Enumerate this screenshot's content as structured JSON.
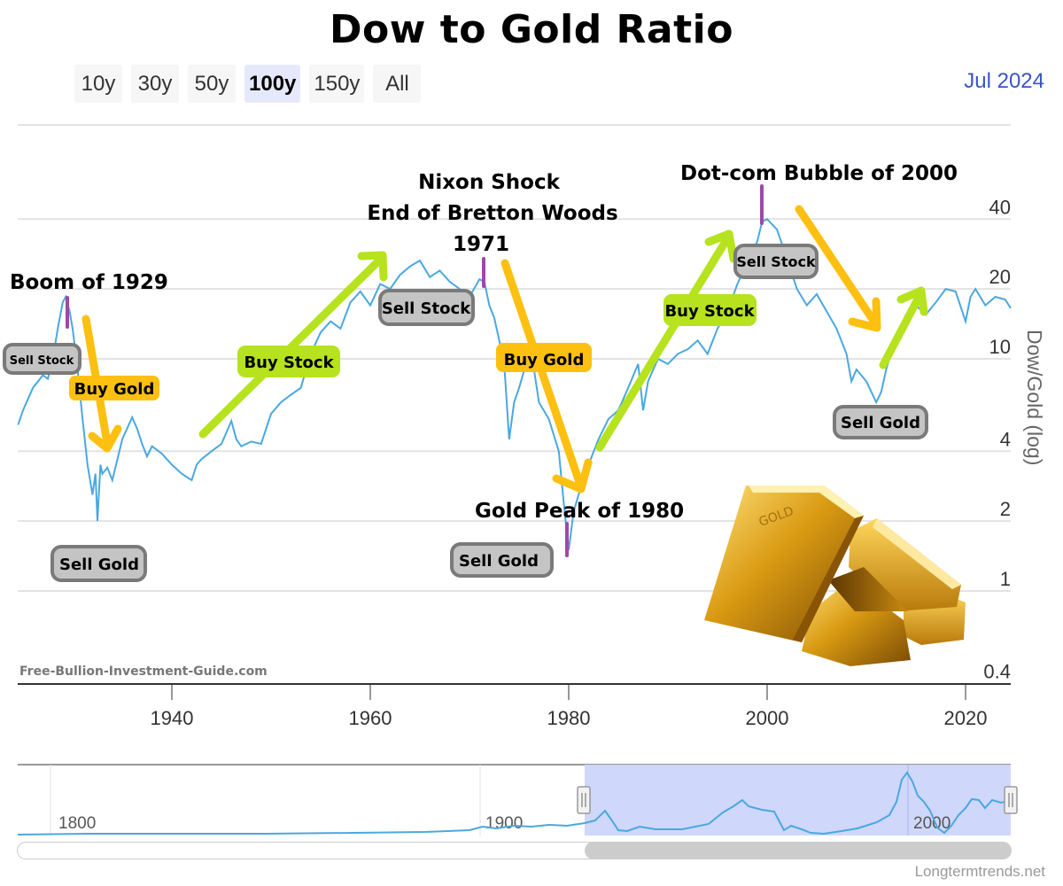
{
  "title": "Dow to Gold Ratio",
  "range_selector": {
    "buttons": [
      {
        "label": "10y",
        "active": false
      },
      {
        "label": "30y",
        "active": false
      },
      {
        "label": "50y",
        "active": false
      },
      {
        "label": "100y",
        "active": true
      },
      {
        "label": "150y",
        "active": false
      },
      {
        "label": "All",
        "active": false
      }
    ]
  },
  "current_date": "Jul 2024",
  "colors": {
    "series_line": "#4aa8e0",
    "annotation_marker": "#9b4aa6",
    "buy_gold_arrow": "#fdc010",
    "buy_stock_arrow": "#b6e21e",
    "sell_badge_fill": "#c4c4c4",
    "sell_badge_border": "#7a7a7a",
    "navigator_mask": "#ccd5fb",
    "date_text": "#3a55c4"
  },
  "annotations": {
    "boom_1929": "Boom of 1929",
    "nixon_line1": "Nixon Shock",
    "nixon_line2": "End of Bretton Woods",
    "nixon_line3": "1971",
    "dotcom_2000": "Dot-com Bubble of 2000",
    "gold_peak_1980": "Gold Peak of 1980",
    "sell_stock": "Sell Stock",
    "sell_gold": "Sell Gold",
    "buy_gold": "Buy Gold",
    "buy_stock": "Buy Stock"
  },
  "watermark": "Free-Bullion-Investment-Guide.com",
  "credit": "Longtermtrends.net",
  "navigator": {
    "labels": [
      "1800",
      "1900",
      "2000"
    ]
  },
  "chart_data": {
    "type": "line",
    "title": "Dow to Gold Ratio",
    "xlabel": "",
    "ylabel": "Dow/Gold (log)",
    "y_scale": "log",
    "y_ticks": [
      0.4,
      1,
      2,
      4,
      10,
      20,
      40
    ],
    "x_ticks": [
      1940,
      1960,
      1980,
      2000,
      2020
    ],
    "xlim": [
      1924.5,
      2024.6
    ],
    "ylim": [
      0.4,
      60
    ],
    "grid": true,
    "series": [
      {
        "name": "Dow/Gold",
        "x": [
          1924.5,
          1925,
          1926,
          1927,
          1927.5,
          1928,
          1928.5,
          1929,
          1929.3,
          1929.7,
          1930,
          1930.5,
          1931,
          1931.5,
          1932,
          1932.3,
          1932.5,
          1932.8,
          1933,
          1933.5,
          1934,
          1935,
          1936,
          1936.5,
          1937,
          1937.5,
          1938,
          1939,
          1940,
          1941,
          1942,
          1942.5,
          1943,
          1944,
          1945,
          1946,
          1946.5,
          1947,
          1948,
          1949,
          1950,
          1951,
          1952,
          1953,
          1954,
          1955,
          1956,
          1957,
          1958,
          1959,
          1960,
          1961,
          1962,
          1963,
          1964,
          1965,
          1966,
          1967,
          1968,
          1969,
          1970,
          1971,
          1971.5,
          1972,
          1972.5,
          1973,
          1973.5,
          1974,
          1974.5,
          1975,
          1976,
          1976.5,
          1977,
          1978,
          1979,
          1979.5,
          1980,
          1980.5,
          1981,
          1982,
          1983,
          1984,
          1985,
          1986,
          1987,
          1987.5,
          1988,
          1989,
          1990,
          1991,
          1992,
          1993,
          1994,
          1995,
          1996,
          1997,
          1998,
          1999,
          1999.5,
          2000,
          2001,
          2002,
          2003,
          2004,
          2005,
          2006,
          2007,
          2008,
          2008.5,
          2009,
          2010,
          2011,
          2011.5,
          2012,
          2013,
          2014,
          2015,
          2016,
          2017,
          2018,
          2019,
          2020,
          2020.5,
          2021,
          2022,
          2023,
          2024,
          2024.6
        ],
        "values": [
          5.2,
          6.0,
          7.5,
          8.5,
          8.2,
          10.0,
          13.5,
          17.5,
          18.5,
          16.0,
          13.5,
          9.0,
          5.5,
          3.5,
          2.6,
          3.2,
          2.0,
          3.5,
          3.2,
          3.4,
          3.0,
          4.5,
          5.6,
          5.0,
          4.3,
          3.8,
          4.2,
          3.9,
          3.5,
          3.2,
          3.0,
          3.5,
          3.7,
          4.0,
          4.3,
          5.4,
          4.5,
          4.2,
          4.4,
          4.3,
          5.8,
          6.5,
          7.0,
          7.5,
          10.5,
          13.0,
          14.5,
          13.5,
          17.5,
          19.5,
          17.0,
          21.0,
          20.0,
          23.0,
          25.0,
          26.5,
          22.5,
          24.0,
          21.5,
          20.0,
          18.5,
          22.0,
          21.5,
          17.0,
          15.0,
          12.0,
          9.5,
          4.5,
          6.5,
          7.5,
          10.5,
          9.0,
          6.5,
          5.5,
          4.0,
          2.4,
          1.5,
          2.2,
          2.6,
          3.5,
          4.5,
          5.5,
          6.0,
          7.5,
          9.5,
          6.0,
          8.0,
          10.0,
          9.5,
          10.5,
          11.0,
          12.0,
          10.5,
          13.5,
          16.0,
          21.0,
          26.0,
          32.0,
          39.0,
          40.0,
          36.0,
          27.0,
          20.0,
          17.0,
          19.0,
          16.0,
          13.5,
          10.5,
          8.0,
          9.0,
          8.0,
          6.5,
          7.2,
          9.0,
          12.5,
          15.5,
          17.0,
          15.5,
          17.5,
          20.0,
          19.5,
          14.5,
          18.5,
          20.0,
          17.0,
          18.5,
          18.0,
          16.5
        ]
      }
    ],
    "annotations": [
      {
        "text": "Boom of 1929",
        "x": 1929.3,
        "marker": "purple"
      },
      {
        "text": "Nixon Shock / End of Bretton Woods / 1971",
        "x": 1971,
        "marker": "purple"
      },
      {
        "text": "Gold Peak of 1980",
        "x": 1980,
        "marker": "purple"
      },
      {
        "text": "Dot-com Bubble of 2000",
        "x": 1999.7,
        "marker": "purple"
      },
      {
        "text": "Sell Stock",
        "x": 1926,
        "type": "badge"
      },
      {
        "text": "Buy Gold",
        "x": 1934.5,
        "type": "label"
      },
      {
        "text": "Sell Gold",
        "x": 1932.2,
        "type": "badge"
      },
      {
        "text": "Buy Stock",
        "x": 1952.2,
        "type": "label"
      },
      {
        "text": "Sell Stock",
        "x": 1965.8,
        "type": "badge"
      },
      {
        "text": "Buy Gold",
        "x": 1975.8,
        "type": "label"
      },
      {
        "text": "Sell Gold",
        "x": 1973.2,
        "type": "badge"
      },
      {
        "text": "Buy Stock",
        "x": 1991.3,
        "type": "label"
      },
      {
        "text": "Sell Stock",
        "x": 2000.9,
        "type": "badge"
      },
      {
        "text": "Sell Gold",
        "x": 2011.5,
        "type": "badge"
      }
    ]
  }
}
